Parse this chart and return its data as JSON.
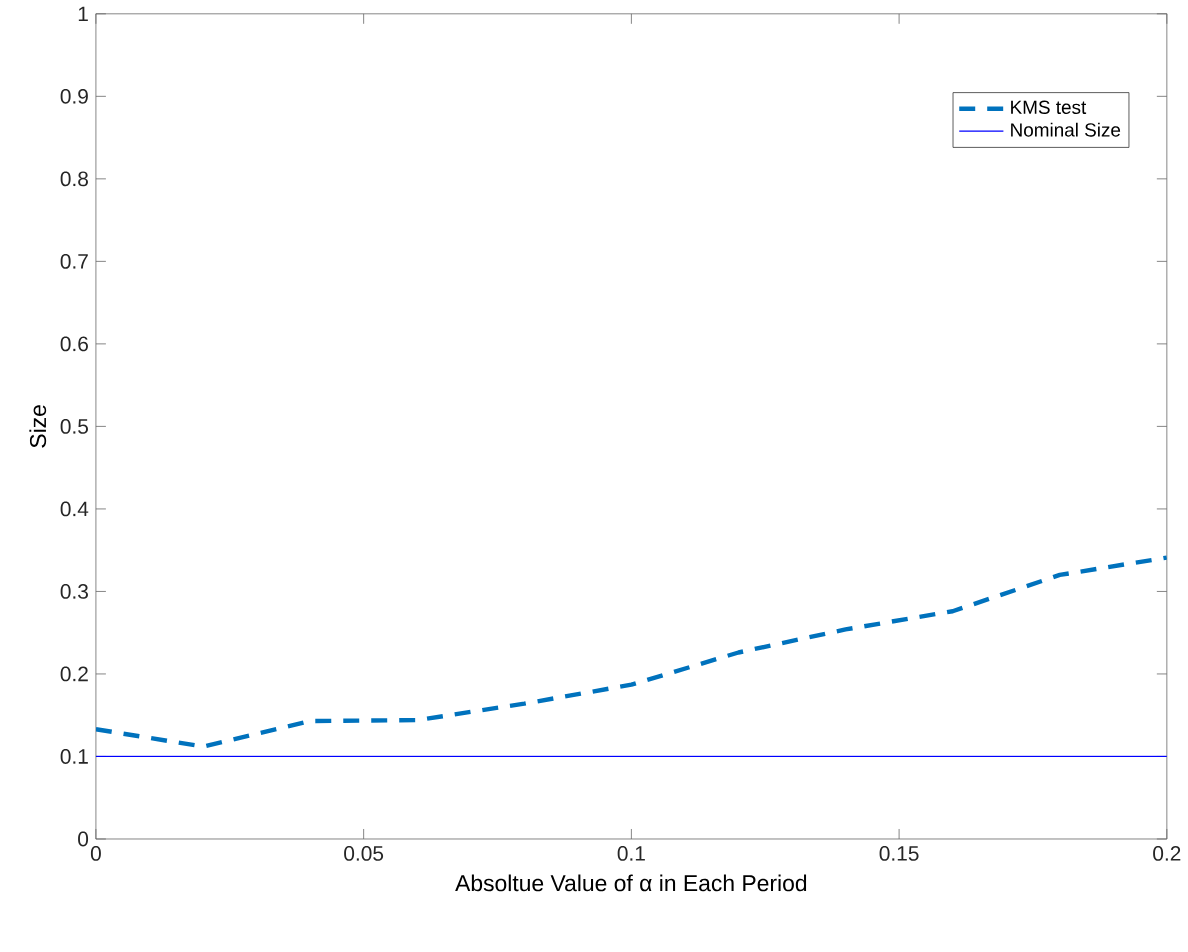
{
  "chart_data": {
    "type": "line",
    "xlabel": "Absoltue Value of α in Each Period",
    "ylabel": "Size",
    "x": [
      0,
      0.02,
      0.04,
      0.06,
      0.08,
      0.1,
      0.12,
      0.14,
      0.16,
      0.18,
      0.2
    ],
    "series": [
      {
        "name": "KMS test",
        "color": "#0072bd",
        "line_style": "dashed",
        "values": [
          0.133,
          0.112,
          0.143,
          0.144,
          0.164,
          0.187,
          0.226,
          0.254,
          0.276,
          0.32,
          0.341
        ]
      },
      {
        "name": "Nominal Size",
        "color": "#0000ff",
        "line_style": "solid",
        "values": [
          0.1,
          0.1,
          0.1,
          0.1,
          0.1,
          0.1,
          0.1,
          0.1,
          0.1,
          0.1,
          0.1
        ]
      }
    ],
    "xlim": [
      0,
      0.2
    ],
    "xticks": [
      0,
      0.05,
      0.1,
      0.15,
      0.2
    ],
    "ylim": [
      0,
      1
    ],
    "yticks": [
      0,
      0.1,
      0.2,
      0.3,
      0.4,
      0.5,
      0.6,
      0.7,
      0.8,
      0.9,
      1
    ],
    "legend": "top right",
    "grid": false,
    "marker": "none"
  }
}
